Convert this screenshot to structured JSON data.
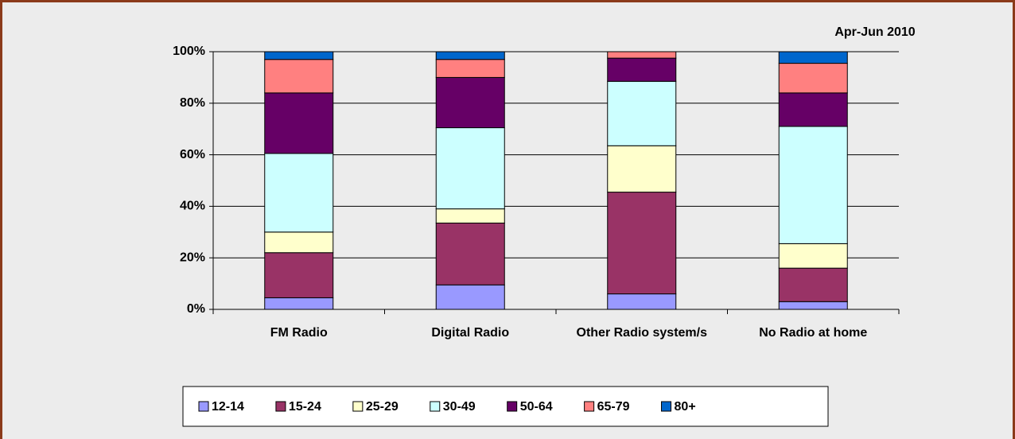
{
  "chart_data": {
    "type": "stacked_bar",
    "annotation": "Apr-Jun 2010",
    "categories": [
      "FM Radio",
      "Digital Radio",
      "Other Radio system/s",
      "No Radio at home"
    ],
    "series": [
      {
        "name": "12-14",
        "color": "#9999ff",
        "values": [
          4.5,
          9.5,
          6,
          3
        ]
      },
      {
        "name": "15-24",
        "color": "#993366",
        "values": [
          17.5,
          24,
          39.5,
          13
        ]
      },
      {
        "name": "25-29",
        "color": "#ffffcc",
        "values": [
          8,
          5.5,
          18,
          9.5
        ]
      },
      {
        "name": "30-49",
        "color": "#ccffff",
        "values": [
          30.5,
          31.5,
          25,
          45.5
        ]
      },
      {
        "name": "50-64",
        "color": "#660066",
        "values": [
          23.5,
          19.5,
          9,
          13
        ]
      },
      {
        "name": "65-79",
        "color": "#ff8080",
        "values": [
          13,
          7,
          2.5,
          11.5
        ]
      },
      {
        "name": "80+",
        "color": "#0066cc",
        "values": [
          3,
          3,
          0,
          4.5
        ]
      }
    ],
    "ylim": [
      0,
      100
    ],
    "yticks": [
      {
        "value": 0,
        "label": "0%"
      },
      {
        "value": 20,
        "label": "20%"
      },
      {
        "value": 40,
        "label": "40%"
      },
      {
        "value": 60,
        "label": "60%"
      },
      {
        "value": 80,
        "label": "80%"
      },
      {
        "value": 100,
        "label": "100%"
      }
    ],
    "grid": true,
    "legend": "bottom"
  }
}
